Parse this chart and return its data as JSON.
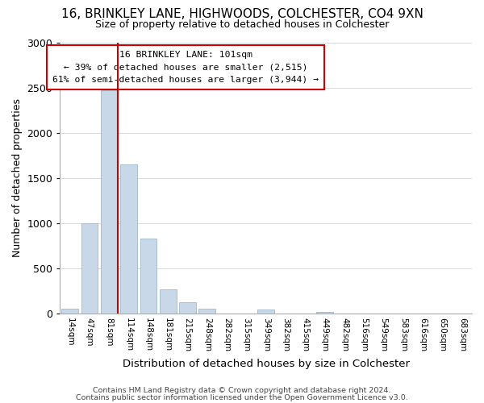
{
  "title": "16, BRINKLEY LANE, HIGHWOODS, COLCHESTER, CO4 9XN",
  "subtitle": "Size of property relative to detached houses in Colchester",
  "xlabel": "Distribution of detached houses by size in Colchester",
  "ylabel": "Number of detached properties",
  "bar_labels": [
    "14sqm",
    "47sqm",
    "81sqm",
    "114sqm",
    "148sqm",
    "181sqm",
    "215sqm",
    "248sqm",
    "282sqm",
    "315sqm",
    "349sqm",
    "382sqm",
    "415sqm",
    "449sqm",
    "482sqm",
    "516sqm",
    "549sqm",
    "583sqm",
    "616sqm",
    "650sqm",
    "683sqm"
  ],
  "bar_values": [
    55,
    1000,
    2470,
    1650,
    830,
    270,
    125,
    55,
    0,
    0,
    45,
    0,
    0,
    20,
    0,
    0,
    0,
    0,
    0,
    0,
    0
  ],
  "bar_color": "#c8d8e8",
  "bar_edge_color": "#a8bfcf",
  "highlight_color": "#cc0000",
  "annotation_title": "16 BRINKLEY LANE: 101sqm",
  "annotation_line1": "← 39% of detached houses are smaller (2,515)",
  "annotation_line2": "61% of semi-detached houses are larger (3,944) →",
  "annotation_box_color": "#ffffff",
  "annotation_box_edge": "#cc0000",
  "ylim": [
    0,
    3000
  ],
  "yticks": [
    0,
    500,
    1000,
    1500,
    2000,
    2500,
    3000
  ],
  "footer1": "Contains HM Land Registry data © Crown copyright and database right 2024.",
  "footer2": "Contains public sector information licensed under the Open Government Licence v3.0.",
  "background_color": "#ffffff",
  "grid_color": "#d0dce8"
}
